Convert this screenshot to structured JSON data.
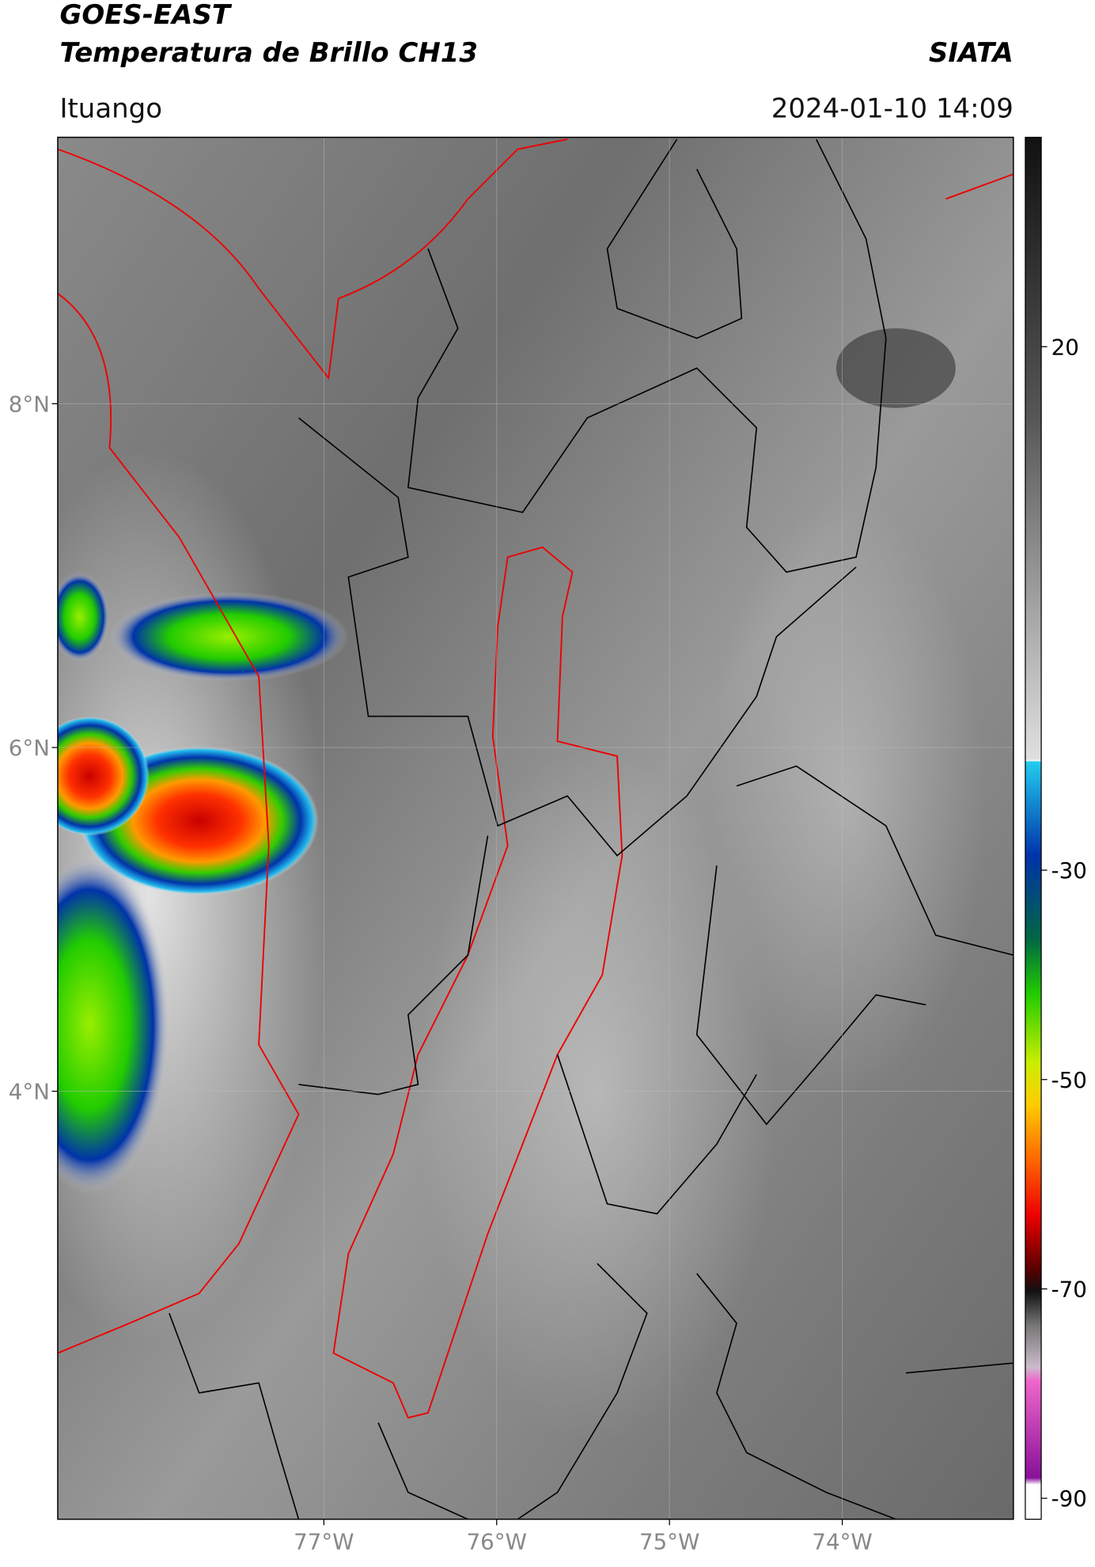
{
  "header": {
    "title": "GOES-EAST",
    "subtitle": "Temperatura de Brillo CH13",
    "org": "SIATA",
    "location": "Ituango",
    "datetime": "2024-01-10 14:09"
  },
  "map": {
    "lat_lim": [
      1.51,
      9.55
    ],
    "lon_lim": [
      -78.54,
      -73.01
    ],
    "lat_ticks": [
      {
        "value": 8,
        "label": "8°N"
      },
      {
        "value": 6,
        "label": "6°N"
      },
      {
        "value": 4,
        "label": "4°N"
      }
    ],
    "lon_ticks": [
      {
        "value": -77,
        "label": "77°W"
      },
      {
        "value": -76,
        "label": "76°W"
      },
      {
        "value": -75,
        "label": "75°W"
      },
      {
        "value": -74,
        "label": "74°W"
      }
    ]
  },
  "colorbar": {
    "lim": [
      -92,
      40
    ],
    "ticks": [
      20,
      -30,
      -50,
      -70,
      -90
    ]
  }
}
